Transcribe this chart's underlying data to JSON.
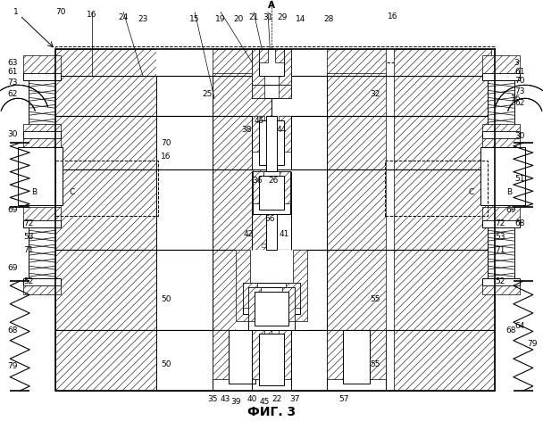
{
  "title": "ФИГ. 3",
  "bg": "#ffffff",
  "lc": "#000000",
  "fig_width": 6.08,
  "fig_height": 5.0,
  "dpi": 100,
  "labels": {
    "top_left_1": "1",
    "A": "A",
    "fig_caption": "ФИГ. 3"
  }
}
